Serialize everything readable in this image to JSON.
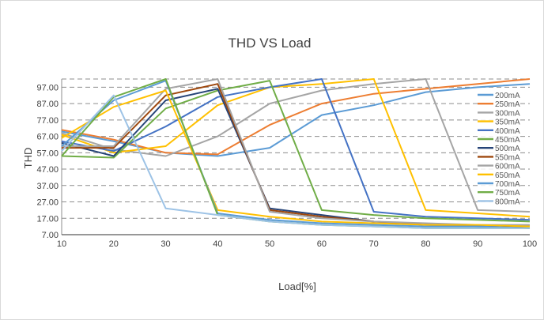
{
  "chart_data": {
    "type": "line",
    "title": "THD VS Load",
    "xlabel": "Load[%]",
    "ylabel": "THD",
    "x": [
      10,
      20,
      30,
      40,
      50,
      60,
      70,
      80,
      90,
      100
    ],
    "xlim": [
      10,
      100
    ],
    "ylim": [
      7,
      102
    ],
    "x_ticks": [
      "10",
      "20",
      "30",
      "40",
      "50",
      "60",
      "70",
      "80",
      "90",
      "100"
    ],
    "y_ticks": [
      "7.00",
      "17.00",
      "27.00",
      "37.00",
      "47.00",
      "57.00",
      "67.00",
      "77.00",
      "87.00",
      "97.00"
    ],
    "grid": true,
    "legend_position": "right",
    "series": [
      {
        "name": "200mA",
        "color": "#5b9bd5",
        "values": [
          70,
          64,
          57,
          55,
          60,
          80,
          86,
          94,
          97,
          99
        ]
      },
      {
        "name": "250mA",
        "color": "#ed7d31",
        "values": [
          71,
          65,
          57,
          56,
          74,
          87,
          93,
          96,
          99,
          103
        ]
      },
      {
        "name": "300mA",
        "color": "#a5a5a5",
        "values": [
          69,
          59,
          55,
          67,
          87,
          95,
          99,
          103,
          22,
          21
        ]
      },
      {
        "name": "350mA",
        "color": "#ffc000",
        "values": [
          68,
          57,
          61,
          86,
          97,
          99,
          103,
          22,
          20,
          18
        ]
      },
      {
        "name": "400mA",
        "color": "#4472c4",
        "values": [
          64,
          58,
          73,
          91,
          97,
          103,
          21,
          18,
          17,
          16
        ]
      },
      {
        "name": "450mA",
        "color": "#70ad47",
        "values": [
          55,
          54,
          84,
          95,
          101,
          22,
          19,
          17,
          16,
          15
        ]
      },
      {
        "name": "500mA",
        "color": "#264478",
        "values": [
          63,
          55,
          89,
          96,
          23,
          19,
          15,
          13,
          12,
          11
        ]
      },
      {
        "name": "550mA",
        "color": "#9e480e",
        "values": [
          60,
          60,
          92,
          99,
          22,
          18,
          15,
          13,
          12,
          12
        ]
      },
      {
        "name": "600mA",
        "color": "#a5a5a5",
        "values": [
          61,
          61,
          96,
          102,
          21,
          17,
          15,
          14,
          13,
          13
        ]
      },
      {
        "name": "650mA",
        "color": "#ffc000",
        "values": [
          66,
          85,
          95,
          22,
          18,
          15,
          14,
          13,
          13,
          12
        ]
      },
      {
        "name": "700mA",
        "color": "#5b9bd5",
        "values": [
          61,
          89,
          101,
          20,
          16,
          14,
          13,
          12,
          12,
          11
        ]
      },
      {
        "name": "750mA",
        "color": "#70ad47",
        "values": [
          55,
          91,
          103,
          19,
          15,
          13,
          12,
          11,
          11,
          11
        ]
      },
      {
        "name": "800mA",
        "color": "#9dc3e6",
        "values": [
          58,
          92,
          23,
          19,
          15,
          13,
          12,
          11,
          11,
          11
        ]
      }
    ]
  }
}
